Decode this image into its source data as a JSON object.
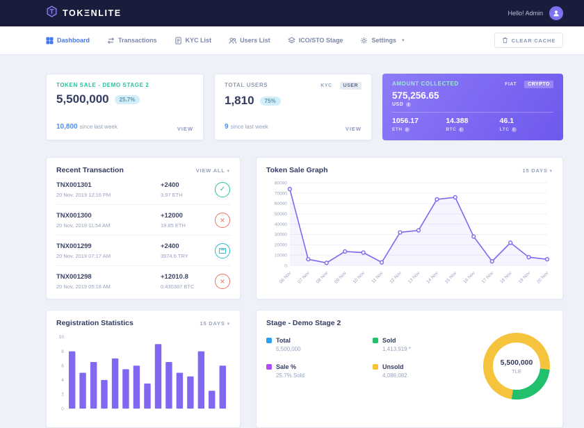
{
  "topbar": {
    "brand": "TOKΞNLITE",
    "greeting": "Hello! Admin"
  },
  "nav": {
    "items": [
      {
        "label": "Dashboard",
        "icon": "dashboard-icon",
        "active": true
      },
      {
        "label": "Transactions",
        "icon": "transactions-icon",
        "active": false
      },
      {
        "label": "KYC List",
        "icon": "kyc-list-icon",
        "active": false
      },
      {
        "label": "Users List",
        "icon": "users-list-icon",
        "active": false
      },
      {
        "label": "ICO/STO Stage",
        "icon": "ico-sto-stage-icon",
        "active": false
      },
      {
        "label": "Settings",
        "icon": "settings-icon",
        "active": false,
        "has_dropdown": true
      }
    ],
    "clear_cache_label": "CLEAR CACHE"
  },
  "cards": {
    "token_sale": {
      "title": "TOKEN SALE - DEMO STAGE 2",
      "value": "5,500,000",
      "badge": "25.7%",
      "delta": "10,800",
      "delta_caption": "since last week",
      "view_label": "VIEW"
    },
    "total_users": {
      "title": "TOTAL USERS",
      "tabs": [
        "KYC",
        "USER"
      ],
      "active_tab": "USER",
      "value": "1,810",
      "badge": "75%",
      "delta": "9",
      "delta_caption": "since last week",
      "view_label": "VIEW"
    },
    "amount_collected": {
      "title": "AMOUNT COLLECTED",
      "tabs": [
        "FIAT",
        "CRYPTO"
      ],
      "active_tab": "CRYPTO",
      "value": "575,256.65",
      "currency": "USD",
      "cryptos": [
        {
          "value": "1056.17",
          "unit": "ETH"
        },
        {
          "value": "14.388",
          "unit": "BTC"
        },
        {
          "value": "46.1",
          "unit": "LTC"
        }
      ]
    }
  },
  "recent": {
    "title": "Recent Transaction",
    "view_all_label": "VIEW ALL",
    "rows": [
      {
        "id": "TNX001301",
        "date": "20 Nov, 2019 12:16 PM",
        "amount": "+2400",
        "equivalent": "3.97 ETH",
        "status": "approved"
      },
      {
        "id": "TNX001300",
        "date": "20 Nov, 2019 11:54 AM",
        "amount": "+12000",
        "equivalent": "19.85 ETH",
        "status": "canceled"
      },
      {
        "id": "TNX001299",
        "date": "20 Nov, 2019 07:17 AM",
        "amount": "+2400",
        "equivalent": "3974.6 TRY",
        "status": "paid"
      },
      {
        "id": "TNX001298",
        "date": "20 Nov, 2019 05:18 AM",
        "amount": "+12010.8",
        "equivalent": "0.430387 BTC",
        "status": "canceled"
      }
    ]
  },
  "sale_graph": {
    "title": "Token Sale Graph",
    "range_label": "15 DAYS"
  },
  "reg_stats": {
    "title": "Registration Statistics",
    "range_label": "15 DAYS"
  },
  "stage": {
    "title": "Stage - Demo Stage 2",
    "legend": [
      {
        "label": "Total",
        "value": "5,500,000",
        "color": "#2b9ff0"
      },
      {
        "label": "Sold",
        "value": "1,413,919 *",
        "color": "#20c06d"
      },
      {
        "label": "Sale %",
        "value": "25.7% Sold",
        "color": "#ae4cf2"
      },
      {
        "label": "Unsold",
        "value": "4,086,082",
        "color": "#f5c33c"
      }
    ],
    "center_value": "5,500,000",
    "center_unit": "TLE"
  },
  "colors": {
    "topbar_bg": "#191c3a",
    "accent_blue": "#4478f0",
    "teal": "#2cc0a0",
    "line_purple": "#7c69f0",
    "bar_purple": "#8268f1",
    "badge_bg": "#d2eef9",
    "status_ok": "#2cc0a0",
    "status_cancel": "#f0705e",
    "status_paid": "#2fb9c9"
  },
  "chart_data": [
    {
      "type": "line",
      "title": "Token Sale Graph",
      "x": [
        "06 Nov",
        "07 Nov",
        "08 Nov",
        "09 Nov",
        "10 Nov",
        "11 Nov",
        "12 Nov",
        "13 Nov",
        "14 Nov",
        "15 Nov",
        "16 Nov",
        "17 Nov",
        "18 Nov",
        "19 Nov",
        "20 Nov"
      ],
      "values": [
        74000,
        6000,
        2500,
        13500,
        12500,
        3000,
        32000,
        34000,
        64000,
        66000,
        28000,
        4000,
        22000,
        8000,
        6000
      ],
      "ylim": [
        0,
        80000
      ],
      "yticks": [
        0,
        10000,
        20000,
        30000,
        40000,
        50000,
        60000,
        70000,
        80000
      ],
      "grid": true,
      "legend_position": "none",
      "line_color": "#7c69f0"
    },
    {
      "type": "bar",
      "title": "Registration Statistics",
      "values": [
        8,
        5,
        6.5,
        4,
        7,
        5.5,
        6,
        3.5,
        9,
        6.5,
        5,
        4.5,
        8,
        2.5,
        6
      ],
      "ylim": [
        0,
        10
      ],
      "yticks": [
        0,
        2,
        4,
        6,
        8,
        10
      ],
      "grid": false,
      "bar_color": "#8268f1"
    },
    {
      "type": "pie",
      "title": "Stage - Demo Stage 2",
      "donut": true,
      "slices": [
        {
          "label": "Sold",
          "value": 25.7,
          "color": "#20c06d"
        },
        {
          "label": "Unsold",
          "value": 74.3,
          "color": "#f5c33c"
        }
      ],
      "center_label": "5,500,000",
      "center_unit": "TLE"
    }
  ]
}
